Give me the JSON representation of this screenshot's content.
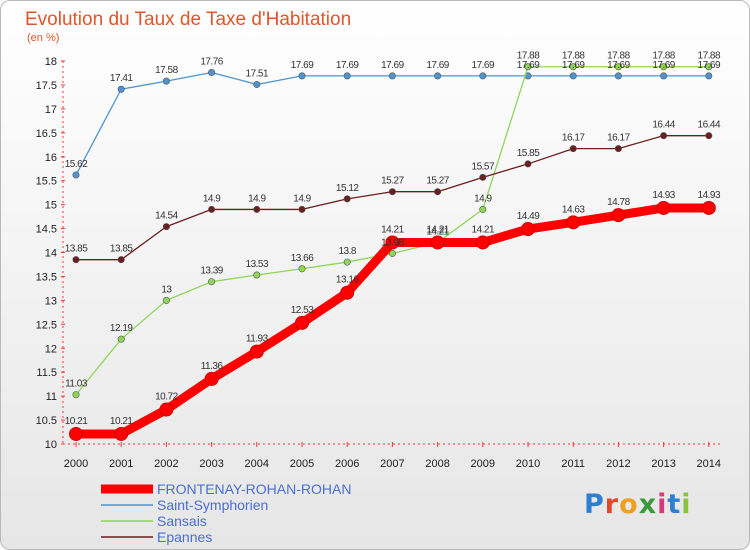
{
  "chart_data": {
    "type": "line",
    "title": "Evolution du Taux de Taxe d'Habitation",
    "subtitle": "(en %)",
    "x": [
      2000,
      2001,
      2002,
      2003,
      2004,
      2005,
      2006,
      2007,
      2008,
      2009,
      2010,
      2011,
      2012,
      2013,
      2014
    ],
    "ylim": [
      10,
      18
    ],
    "yticks": [
      "10",
      "10.5",
      "11",
      "11.5",
      "12",
      "12.5",
      "13",
      "13.5",
      "14",
      "14.5",
      "15",
      "15.5",
      "16",
      "16.5",
      "17",
      "17.5",
      "18"
    ],
    "grid": false,
    "legend_position": "bottom-left",
    "series": [
      {
        "name": "Saint-Symphorien",
        "color": "#4e94d0",
        "values": [
          15.62,
          17.41,
          17.58,
          17.76,
          17.51,
          17.69,
          17.69,
          17.69,
          17.69,
          17.69,
          17.69,
          17.69,
          17.69,
          17.69,
          17.69
        ]
      },
      {
        "name": "Sansais",
        "color": "#8ed65a",
        "values": [
          11.03,
          12.19,
          13,
          13.39,
          13.53,
          13.66,
          13.8,
          13.98,
          14.21,
          14.9,
          17.88,
          17.88,
          17.88,
          17.88,
          17.88
        ]
      },
      {
        "name": "Epannes",
        "color": "#6b1e1e",
        "values": [
          13.85,
          13.85,
          14.54,
          14.9,
          14.9,
          14.9,
          15.12,
          15.27,
          15.27,
          15.57,
          15.85,
          16.17,
          16.17,
          16.44,
          16.44
        ]
      },
      {
        "name": "FRONTENAY-ROHAN-ROHAN",
        "color": "#ff0000",
        "values": [
          10.21,
          10.21,
          10.72,
          11.36,
          11.93,
          12.53,
          13.16,
          14.21,
          14.21,
          14.21,
          14.49,
          14.63,
          14.78,
          14.93,
          14.93
        ]
      }
    ],
    "legend_order": [
      3,
      0,
      1,
      2
    ]
  },
  "logo": {
    "letters": [
      "P",
      "r",
      "o",
      "x",
      "i",
      "t",
      "i"
    ],
    "colors": [
      "#2f7fd0",
      "#e2492b",
      "#f0a020",
      "#3a9a3a",
      "#d63a7a",
      "#2f7fd0",
      "#8ac43f"
    ]
  }
}
